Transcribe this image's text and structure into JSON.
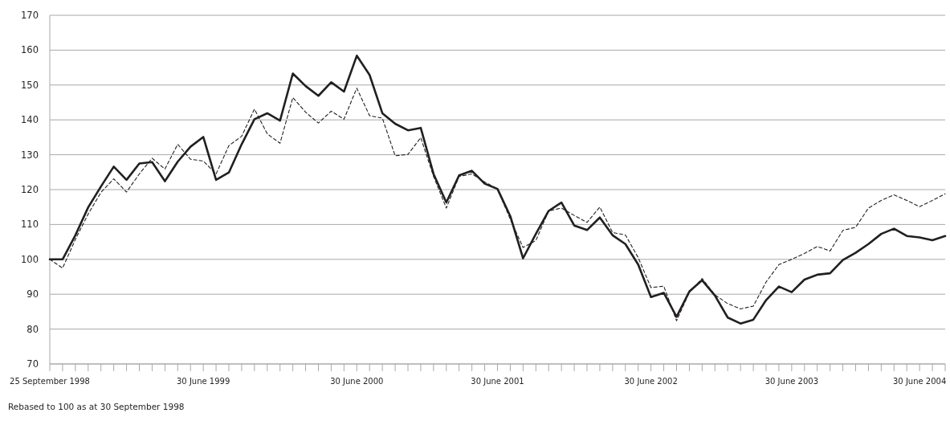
{
  "chart_data": {
    "type": "line",
    "categories": [
      "25 September 1998",
      null,
      null,
      null,
      null,
      null,
      null,
      null,
      null,
      null,
      null,
      null,
      "30 June 1999",
      null,
      null,
      null,
      null,
      null,
      null,
      null,
      null,
      null,
      null,
      null,
      "30 June 2000",
      null,
      null,
      null,
      null,
      null,
      null,
      null,
      null,
      null,
      null,
      "30 June 2001",
      null,
      null,
      null,
      null,
      null,
      null,
      null,
      null,
      null,
      null,
      null,
      "30 June 2002",
      null,
      null,
      null,
      null,
      null,
      null,
      null,
      null,
      null,
      null,
      "30 June 2003",
      null,
      null,
      null,
      null,
      null,
      null,
      null,
      null,
      null,
      "30 June 2004",
      null,
      null
    ],
    "series": [
      {
        "color": "#231f20",
        "line_style": "solid",
        "values": [
          100,
          100,
          106.9,
          114.9,
          120.9,
          126.6,
          122.8,
          127.5,
          127.9,
          122.4,
          128,
          132.3,
          135.1,
          122.8,
          124.9,
          133,
          140.2,
          141.9,
          139.8,
          153.3,
          149.7,
          146.9,
          150.8,
          148.1,
          158.4,
          152.9,
          141.9,
          138.9,
          137,
          137.7,
          124.5,
          116.3,
          124.1,
          125.4,
          121.7,
          120.2,
          112.4,
          100.3,
          107.3,
          113.9,
          116.3,
          109.7,
          108.4,
          112,
          106.9,
          104.4,
          98.5,
          89.2,
          90.4,
          83.5,
          90.8,
          94,
          89.6,
          83.3,
          81.6,
          82.7,
          88.3,
          92.2,
          90.6,
          94.2,
          95.6,
          96,
          99.8,
          101.9,
          104.4,
          107.3,
          108.8,
          106.7,
          106.3,
          105.5,
          106.7
        ]
      },
      {
        "color": "#231f20",
        "line_style": "dashed",
        "values": [
          100,
          97.5,
          105.7,
          113,
          119.2,
          123.1,
          119.3,
          124.5,
          129,
          125.9,
          133,
          128.7,
          128.2,
          124.5,
          132.6,
          135.3,
          143.1,
          136,
          133.3,
          146.4,
          142.2,
          139.1,
          142.5,
          140.2,
          149.1,
          141.2,
          140.5,
          129.7,
          130.1,
          134.9,
          123.8,
          114.7,
          123.8,
          124.5,
          122.2,
          120.2,
          111.5,
          103.4,
          105.4,
          113.9,
          114.7,
          112.6,
          110.6,
          115,
          107.7,
          107,
          100.5,
          91.9,
          92.3,
          82.4,
          90.5,
          94.5,
          89.8,
          87.3,
          85.8,
          86.6,
          93.5,
          98.5,
          100,
          101.7,
          103.7,
          102.4,
          108.3,
          109.2,
          114.7,
          116.9,
          118.5,
          116.9,
          115.1,
          116.9,
          118.8
        ]
      }
    ],
    "ylim": [
      70,
      170
    ],
    "yticks": [
      70,
      80,
      90,
      100,
      110,
      120,
      130,
      140,
      150,
      160,
      170
    ],
    "grid": "y",
    "marker": "none",
    "annotations": [
      "Rebased to 100 as at 30 September 1998"
    ]
  }
}
